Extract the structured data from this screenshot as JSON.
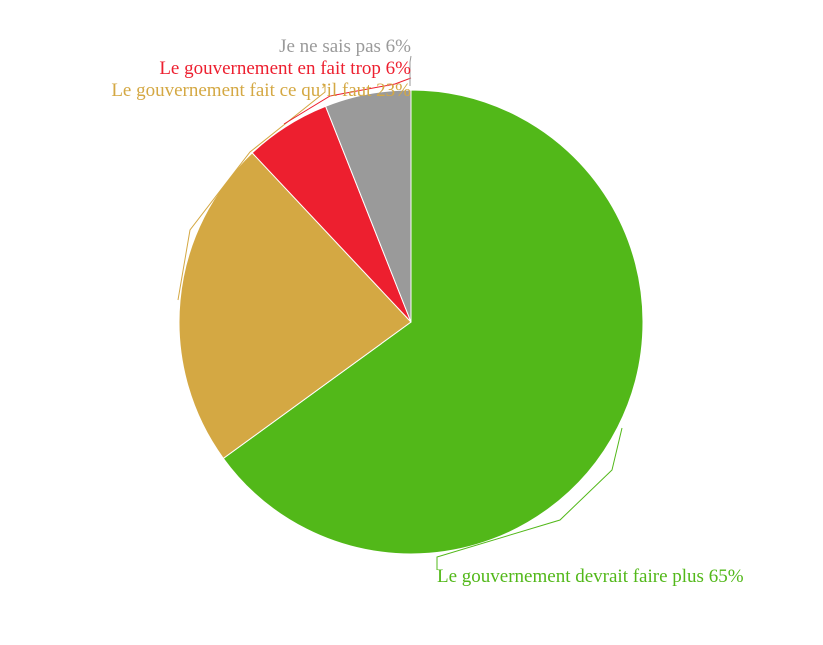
{
  "chart_data": {
    "type": "pie",
    "title": "",
    "slices": [
      {
        "label": "Le gouvernement devrait faire plus",
        "value": 65,
        "display": "Le gouvernement devrait faire plus 65%",
        "color": "#52b819"
      },
      {
        "label": "Le gouvernement fait ce qu’il faut",
        "value": 23,
        "display": "Le gouvernement fait ce qu’il faut 23%",
        "color": "#d4a843"
      },
      {
        "label": "Le gouvernement en fait trop",
        "value": 6,
        "display": "Le gouvernement en fait trop 6%",
        "color": "#ed1f2f"
      },
      {
        "label": "Je ne sais pas",
        "value": 6,
        "display": "Je ne sais pas 6%",
        "color": "#9a9a9a"
      }
    ],
    "start_angle_deg": 0,
    "direction": "clockwise",
    "legend": "none",
    "labels": "outside"
  }
}
